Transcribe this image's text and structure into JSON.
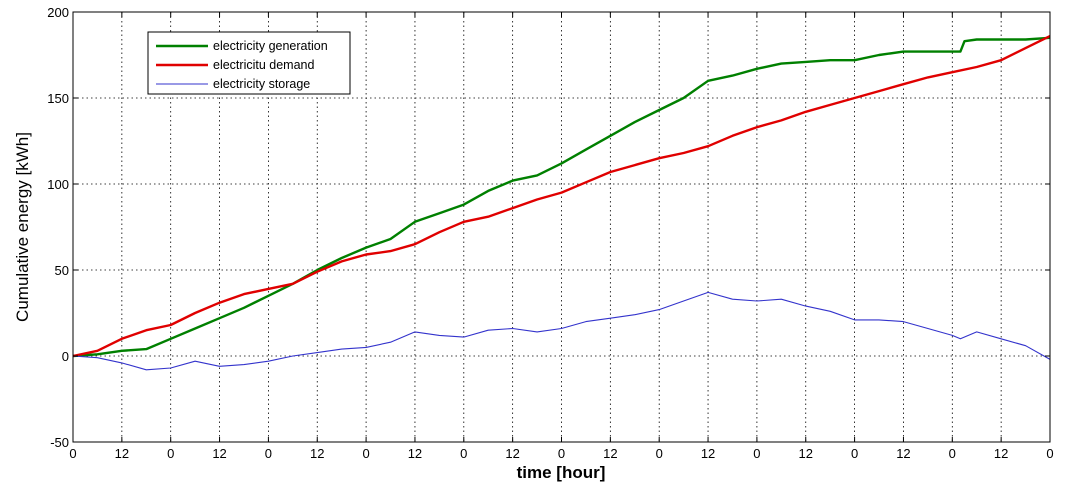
{
  "chart_data": {
    "type": "line",
    "title": "",
    "xlabel": "time [hour]",
    "ylabel": "Cumulative energy [kWh]",
    "xlim": [
      0,
      240
    ],
    "ylim": [
      -50,
      200
    ],
    "x_ticks": [
      0,
      12,
      24,
      36,
      48,
      60,
      72,
      84,
      96,
      108,
      120,
      132,
      144,
      156,
      168,
      180,
      192,
      204,
      216,
      228,
      240
    ],
    "x_tick_labels": [
      "0",
      "12",
      "0",
      "12",
      "0",
      "12",
      "0",
      "12",
      "0",
      "12",
      "0",
      "12",
      "0",
      "12",
      "0",
      "12",
      "0",
      "12",
      "0",
      "12",
      "0"
    ],
    "y_ticks": [
      -50,
      0,
      50,
      100,
      150,
      200
    ],
    "y_tick_labels": [
      "-50",
      "0",
      "50",
      "100",
      "150",
      "200"
    ],
    "grid": true,
    "legend_position": "top-left",
    "series": [
      {
        "name": "electricity generation",
        "color": "#008000",
        "x": [
          0,
          6,
          12,
          18,
          24,
          30,
          36,
          42,
          48,
          54,
          60,
          66,
          72,
          78,
          84,
          90,
          96,
          102,
          108,
          114,
          120,
          126,
          132,
          138,
          144,
          150,
          156,
          162,
          168,
          174,
          180,
          186,
          192,
          198,
          204,
          210,
          216,
          218,
          219,
          222,
          228,
          234,
          240
        ],
        "y": [
          0,
          1,
          3,
          4,
          10,
          16,
          22,
          28,
          35,
          42,
          50,
          57,
          63,
          68,
          78,
          83,
          88,
          96,
          102,
          105,
          112,
          120,
          128,
          136,
          143,
          150,
          160,
          163,
          167,
          170,
          171,
          172,
          172,
          175,
          177,
          177,
          177,
          177,
          183,
          184,
          184,
          184,
          185
        ]
      },
      {
        "name": "electricitu demand",
        "color": "#e00000",
        "x": [
          0,
          6,
          12,
          18,
          24,
          30,
          36,
          42,
          48,
          54,
          60,
          66,
          72,
          78,
          84,
          90,
          96,
          102,
          108,
          114,
          120,
          126,
          132,
          138,
          144,
          150,
          156,
          162,
          168,
          174,
          180,
          186,
          192,
          198,
          204,
          210,
          216,
          222,
          228,
          234,
          240
        ],
        "y": [
          0,
          3,
          10,
          15,
          18,
          25,
          31,
          36,
          39,
          42,
          49,
          55,
          59,
          61,
          65,
          72,
          78,
          81,
          86,
          91,
          95,
          101,
          107,
          111,
          115,
          118,
          122,
          128,
          133,
          137,
          142,
          146,
          150,
          154,
          158,
          162,
          165,
          168,
          172,
          179,
          186
        ]
      },
      {
        "name": "electricity storage",
        "color": "#3333cc",
        "x": [
          0,
          6,
          12,
          18,
          24,
          30,
          36,
          42,
          48,
          54,
          60,
          66,
          72,
          78,
          84,
          90,
          96,
          102,
          108,
          114,
          120,
          126,
          132,
          138,
          144,
          150,
          156,
          162,
          168,
          174,
          180,
          186,
          192,
          198,
          204,
          210,
          216,
          218,
          222,
          228,
          234,
          240
        ],
        "y": [
          0,
          -1,
          -4,
          -8,
          -7,
          -3,
          -6,
          -5,
          -3,
          0,
          2,
          4,
          5,
          8,
          14,
          12,
          11,
          15,
          16,
          14,
          16,
          20,
          22,
          24,
          27,
          32,
          37,
          33,
          32,
          33,
          29,
          26,
          21,
          21,
          20,
          16,
          12,
          10,
          14,
          10,
          6,
          -2
        ]
      }
    ]
  }
}
